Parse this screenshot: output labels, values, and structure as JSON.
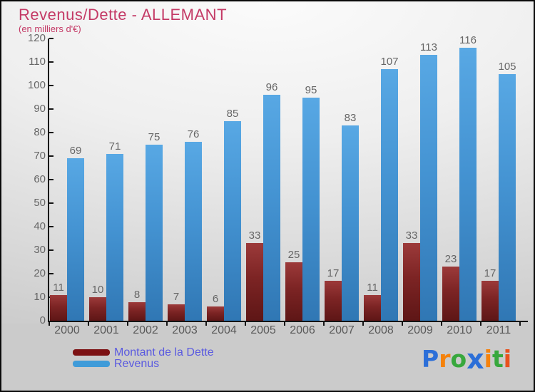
{
  "header": {
    "title": "Revenus/Dette - ALLEMANT",
    "subtitle": "(en milliers d'€)"
  },
  "chart_data": {
    "type": "bar",
    "title": "Revenus/Dette - ALLEMANT",
    "subtitle": "(en milliers d'€)",
    "categories": [
      "2000",
      "2001",
      "2002",
      "2003",
      "2004",
      "2005",
      "2006",
      "2007",
      "2008",
      "2009",
      "2010",
      "2011"
    ],
    "series": [
      {
        "name": "Montant de la Dette",
        "values": [
          11,
          10,
          8,
          7,
          6,
          33,
          25,
          17,
          11,
          33,
          23,
          17
        ]
      },
      {
        "name": "Revenus",
        "values": [
          69,
          71,
          75,
          76,
          85,
          96,
          95,
          83,
          107,
          113,
          116,
          105
        ]
      }
    ],
    "ylim": [
      0,
      120
    ],
    "ytick_step": 10,
    "grid": "off",
    "value_labels": "on",
    "legend_position": "bottom-left"
  },
  "legend": {
    "items": [
      {
        "label": "Montant de la Dette",
        "color": "#7c1113"
      },
      {
        "label": "Revenus",
        "color": "#3f9bd9"
      }
    ],
    "text_color": "#5a5ae0"
  },
  "logo": {
    "name": "Proxiti",
    "letters": [
      {
        "char": "P",
        "color": "#2c6fd8"
      },
      {
        "char": "r",
        "color": "#f5820c"
      },
      {
        "char": "o",
        "color": "#38a83d"
      },
      {
        "char": "x",
        "color": "#2c6fd8"
      },
      {
        "char": "i",
        "color": "#f5820c"
      },
      {
        "char": "t",
        "color": "#38a83d"
      },
      {
        "char": "i",
        "color": "#e8521f"
      }
    ]
  },
  "colors": {
    "title": "#c43a66",
    "dette_bar_top": "#9c3a3a",
    "dette_bar_bottom": "#5e1616",
    "revenus_bar_top": "#58a8e4",
    "revenus_bar_bottom": "#3077b4",
    "axis": "#141414",
    "tick_label": "#666666",
    "background": "#cbcbcb"
  }
}
